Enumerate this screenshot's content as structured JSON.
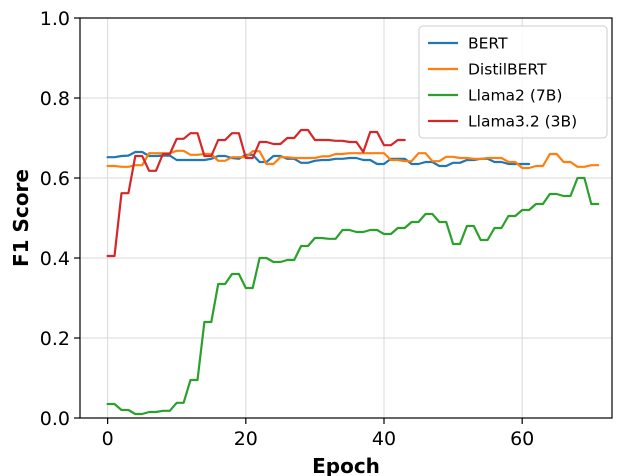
{
  "chart_data": {
    "type": "line",
    "xlabel": "Epoch",
    "ylabel": "F1 Score",
    "xlim": [
      -4,
      73
    ],
    "ylim": [
      0.0,
      1.0
    ],
    "xticks": [
      0,
      20,
      40,
      60
    ],
    "yticks": [
      0.0,
      0.2,
      0.4,
      0.6,
      0.8,
      1.0
    ],
    "ytick_labels": [
      "0.0",
      "0.2",
      "0.4",
      "0.6",
      "0.8",
      "1.0"
    ],
    "grid": true,
    "legend_position": "top-right",
    "series": [
      {
        "name": "BERT",
        "color": "#1f77b4",
        "x": [
          0,
          1,
          2,
          3,
          4,
          5,
          6,
          7,
          8,
          9,
          10,
          11,
          12,
          13,
          14,
          15,
          16,
          17,
          18,
          19,
          20,
          21,
          22,
          23,
          24,
          25,
          26,
          27,
          28,
          29,
          30,
          31,
          32,
          33,
          34,
          35,
          36,
          37,
          38,
          39,
          40,
          41,
          42,
          43,
          44,
          45,
          46,
          47,
          48,
          49,
          50,
          51,
          52,
          53,
          54,
          55,
          56,
          57,
          58,
          59,
          60,
          61
        ],
        "y": [
          0.652,
          0.652,
          0.655,
          0.656,
          0.665,
          0.665,
          0.655,
          0.655,
          0.656,
          0.656,
          0.645,
          0.645,
          0.645,
          0.645,
          0.645,
          0.648,
          0.655,
          0.655,
          0.65,
          0.648,
          0.658,
          0.658,
          0.64,
          0.64,
          0.655,
          0.655,
          0.648,
          0.648,
          0.638,
          0.638,
          0.643,
          0.645,
          0.645,
          0.648,
          0.648,
          0.65,
          0.65,
          0.645,
          0.645,
          0.635,
          0.635,
          0.648,
          0.648,
          0.648,
          0.635,
          0.635,
          0.64,
          0.64,
          0.63,
          0.63,
          0.638,
          0.638,
          0.645,
          0.645,
          0.648,
          0.648,
          0.64,
          0.64,
          0.635,
          0.635,
          0.635,
          0.635
        ]
      },
      {
        "name": "DistilBERT",
        "color": "#ff7f0e",
        "x": [
          0,
          1,
          2,
          3,
          4,
          5,
          6,
          7,
          8,
          9,
          10,
          11,
          12,
          13,
          14,
          15,
          16,
          17,
          18,
          19,
          20,
          21,
          22,
          23,
          24,
          25,
          26,
          27,
          28,
          29,
          30,
          31,
          32,
          33,
          34,
          35,
          36,
          37,
          38,
          39,
          40,
          41,
          42,
          43,
          44,
          45,
          46,
          47,
          48,
          49,
          50,
          51,
          52,
          53,
          54,
          55,
          56,
          57,
          58,
          59,
          60,
          61,
          62,
          63,
          64,
          65,
          66,
          67,
          68,
          69,
          70,
          71
        ],
        "y": [
          0.63,
          0.63,
          0.628,
          0.628,
          0.632,
          0.632,
          0.662,
          0.662,
          0.662,
          0.662,
          0.668,
          0.668,
          0.658,
          0.658,
          0.66,
          0.66,
          0.643,
          0.643,
          0.652,
          0.652,
          0.652,
          0.667,
          0.667,
          0.635,
          0.635,
          0.652,
          0.652,
          0.65,
          0.65,
          0.65,
          0.65,
          0.654,
          0.654,
          0.66,
          0.66,
          0.662,
          0.662,
          0.662,
          0.662,
          0.662,
          0.662,
          0.645,
          0.645,
          0.642,
          0.642,
          0.662,
          0.662,
          0.642,
          0.642,
          0.653,
          0.653,
          0.65,
          0.65,
          0.648,
          0.648,
          0.65,
          0.65,
          0.65,
          0.64,
          0.64,
          0.625,
          0.625,
          0.63,
          0.63,
          0.66,
          0.66,
          0.64,
          0.64,
          0.628,
          0.628,
          0.632,
          0.632
        ]
      },
      {
        "name": "Llama2 (7B)",
        "color": "#2ca02c",
        "x": [
          0,
          1,
          2,
          3,
          4,
          5,
          6,
          7,
          8,
          9,
          10,
          11,
          12,
          13,
          14,
          15,
          16,
          17,
          18,
          19,
          20,
          21,
          22,
          23,
          24,
          25,
          26,
          27,
          28,
          29,
          30,
          31,
          32,
          33,
          34,
          35,
          36,
          37,
          38,
          39,
          40,
          41,
          42,
          43,
          44,
          45,
          46,
          47,
          48,
          49,
          50,
          51,
          52,
          53,
          54,
          55,
          56,
          57,
          58,
          59,
          60,
          61,
          62,
          63,
          64,
          65,
          66,
          67,
          68,
          69,
          70,
          71
        ],
        "y": [
          0.035,
          0.035,
          0.02,
          0.02,
          0.01,
          0.01,
          0.015,
          0.015,
          0.018,
          0.018,
          0.038,
          0.038,
          0.095,
          0.095,
          0.24,
          0.24,
          0.335,
          0.335,
          0.36,
          0.36,
          0.325,
          0.325,
          0.4,
          0.4,
          0.39,
          0.39,
          0.395,
          0.395,
          0.43,
          0.43,
          0.45,
          0.45,
          0.448,
          0.448,
          0.47,
          0.47,
          0.465,
          0.465,
          0.47,
          0.47,
          0.46,
          0.46,
          0.475,
          0.475,
          0.49,
          0.49,
          0.51,
          0.51,
          0.49,
          0.49,
          0.435,
          0.435,
          0.48,
          0.48,
          0.445,
          0.445,
          0.475,
          0.475,
          0.505,
          0.505,
          0.52,
          0.52,
          0.535,
          0.535,
          0.56,
          0.56,
          0.555,
          0.555,
          0.6,
          0.6,
          0.535,
          0.535
        ]
      },
      {
        "name": "Llama3.2 (3B)",
        "color": "#d62728",
        "x": [
          0,
          1,
          2,
          3,
          4,
          5,
          6,
          7,
          8,
          9,
          10,
          11,
          12,
          13,
          14,
          15,
          16,
          17,
          18,
          19,
          20,
          21,
          22,
          23,
          24,
          25,
          26,
          27,
          28,
          29,
          30,
          31,
          32,
          33,
          34,
          35,
          36,
          37,
          38,
          39,
          40,
          41,
          42,
          43
        ],
        "y": [
          0.405,
          0.405,
          0.562,
          0.562,
          0.655,
          0.655,
          0.618,
          0.618,
          0.66,
          0.66,
          0.698,
          0.698,
          0.712,
          0.712,
          0.655,
          0.655,
          0.695,
          0.695,
          0.712,
          0.712,
          0.65,
          0.65,
          0.69,
          0.69,
          0.685,
          0.685,
          0.7,
          0.7,
          0.72,
          0.72,
          0.695,
          0.695,
          0.695,
          0.693,
          0.693,
          0.69,
          0.69,
          0.665,
          0.715,
          0.715,
          0.682,
          0.682,
          0.695,
          0.695
        ]
      }
    ]
  }
}
